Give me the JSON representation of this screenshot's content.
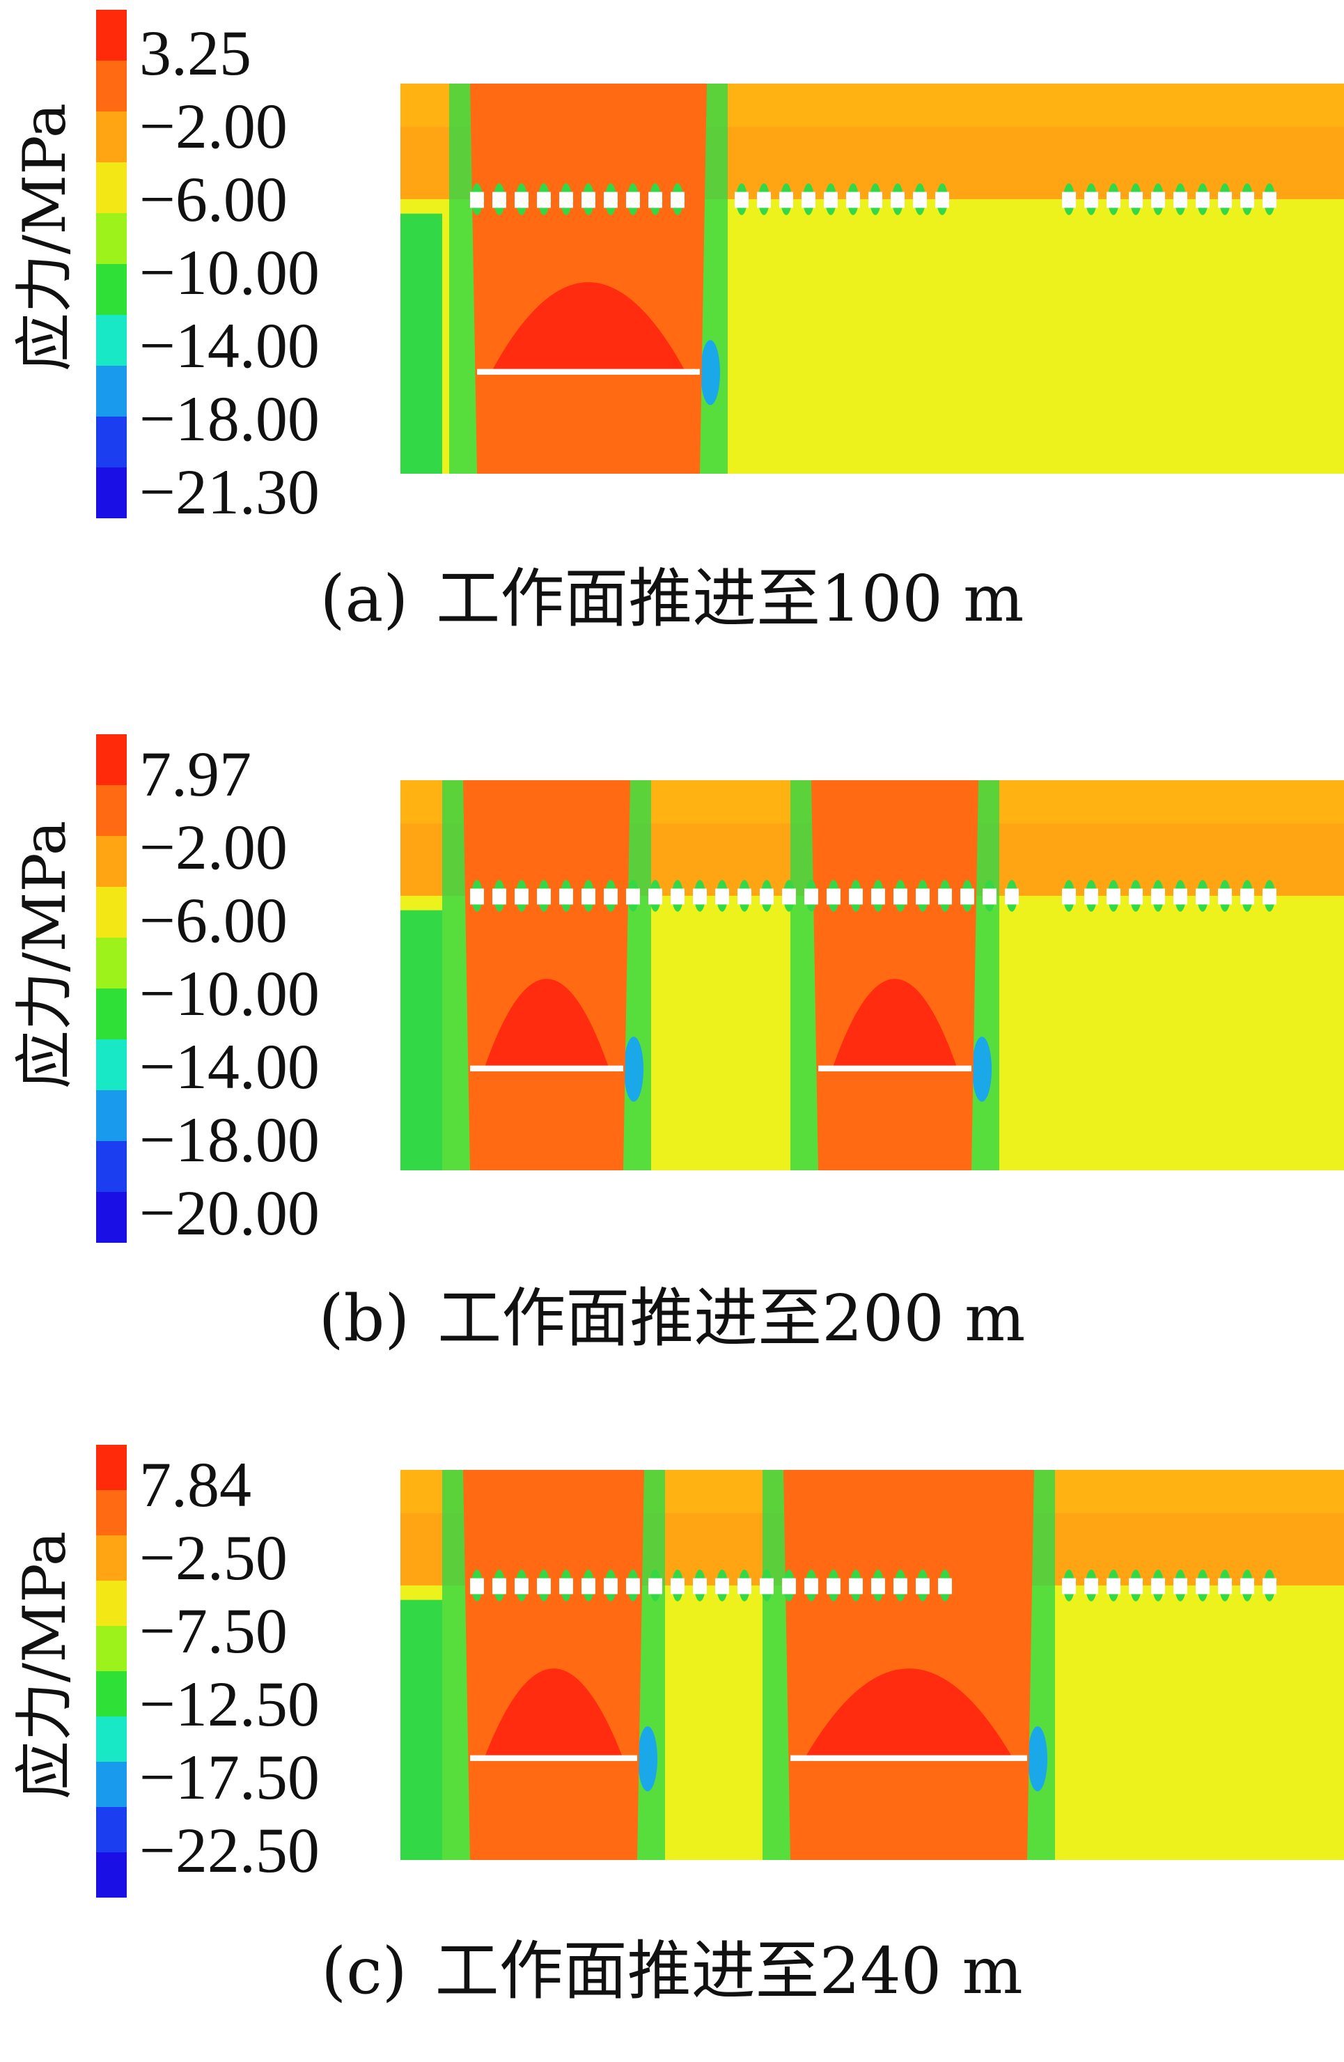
{
  "panels": [
    {
      "caption_label": "(a)",
      "caption_text": "工作面推进至100 m",
      "legend_title": "应力/MPa",
      "ticks": [
        "3.25",
        "−2.00",
        "−6.00",
        "−10.00",
        "−14.00",
        "−18.00",
        "−21.30"
      ]
    },
    {
      "caption_label": "(b)",
      "caption_text": "工作面推进至200 m",
      "legend_title": "应力/MPa",
      "ticks": [
        "7.97",
        "−2.00",
        "−6.00",
        "−10.00",
        "−14.00",
        "−18.00",
        "−20.00"
      ]
    },
    {
      "caption_label": "(c)",
      "caption_text": "工作面推进至240 m",
      "legend_title": "应力/MPa",
      "ticks": [
        "7.84",
        "−2.50",
        "−7.50",
        "−12.50",
        "−17.50",
        "−22.50"
      ]
    }
  ],
  "colors": {
    "scale": [
      "#ff2a0a",
      "#ff6a12",
      "#ffa412",
      "#f4e716",
      "#9ef21c",
      "#2fe136",
      "#19e8c6",
      "#1a9aec",
      "#1b3ff0",
      "#1a10e6"
    ],
    "field_top": "#ffb212",
    "field_body": "#ffa514",
    "far_field": "#eef21c",
    "goaf": "#ff6a12",
    "goaf_core": "#ff2c10",
    "pillar": "#32d845",
    "concentration": "#1aa8e8",
    "opening": "#ffffff"
  }
}
